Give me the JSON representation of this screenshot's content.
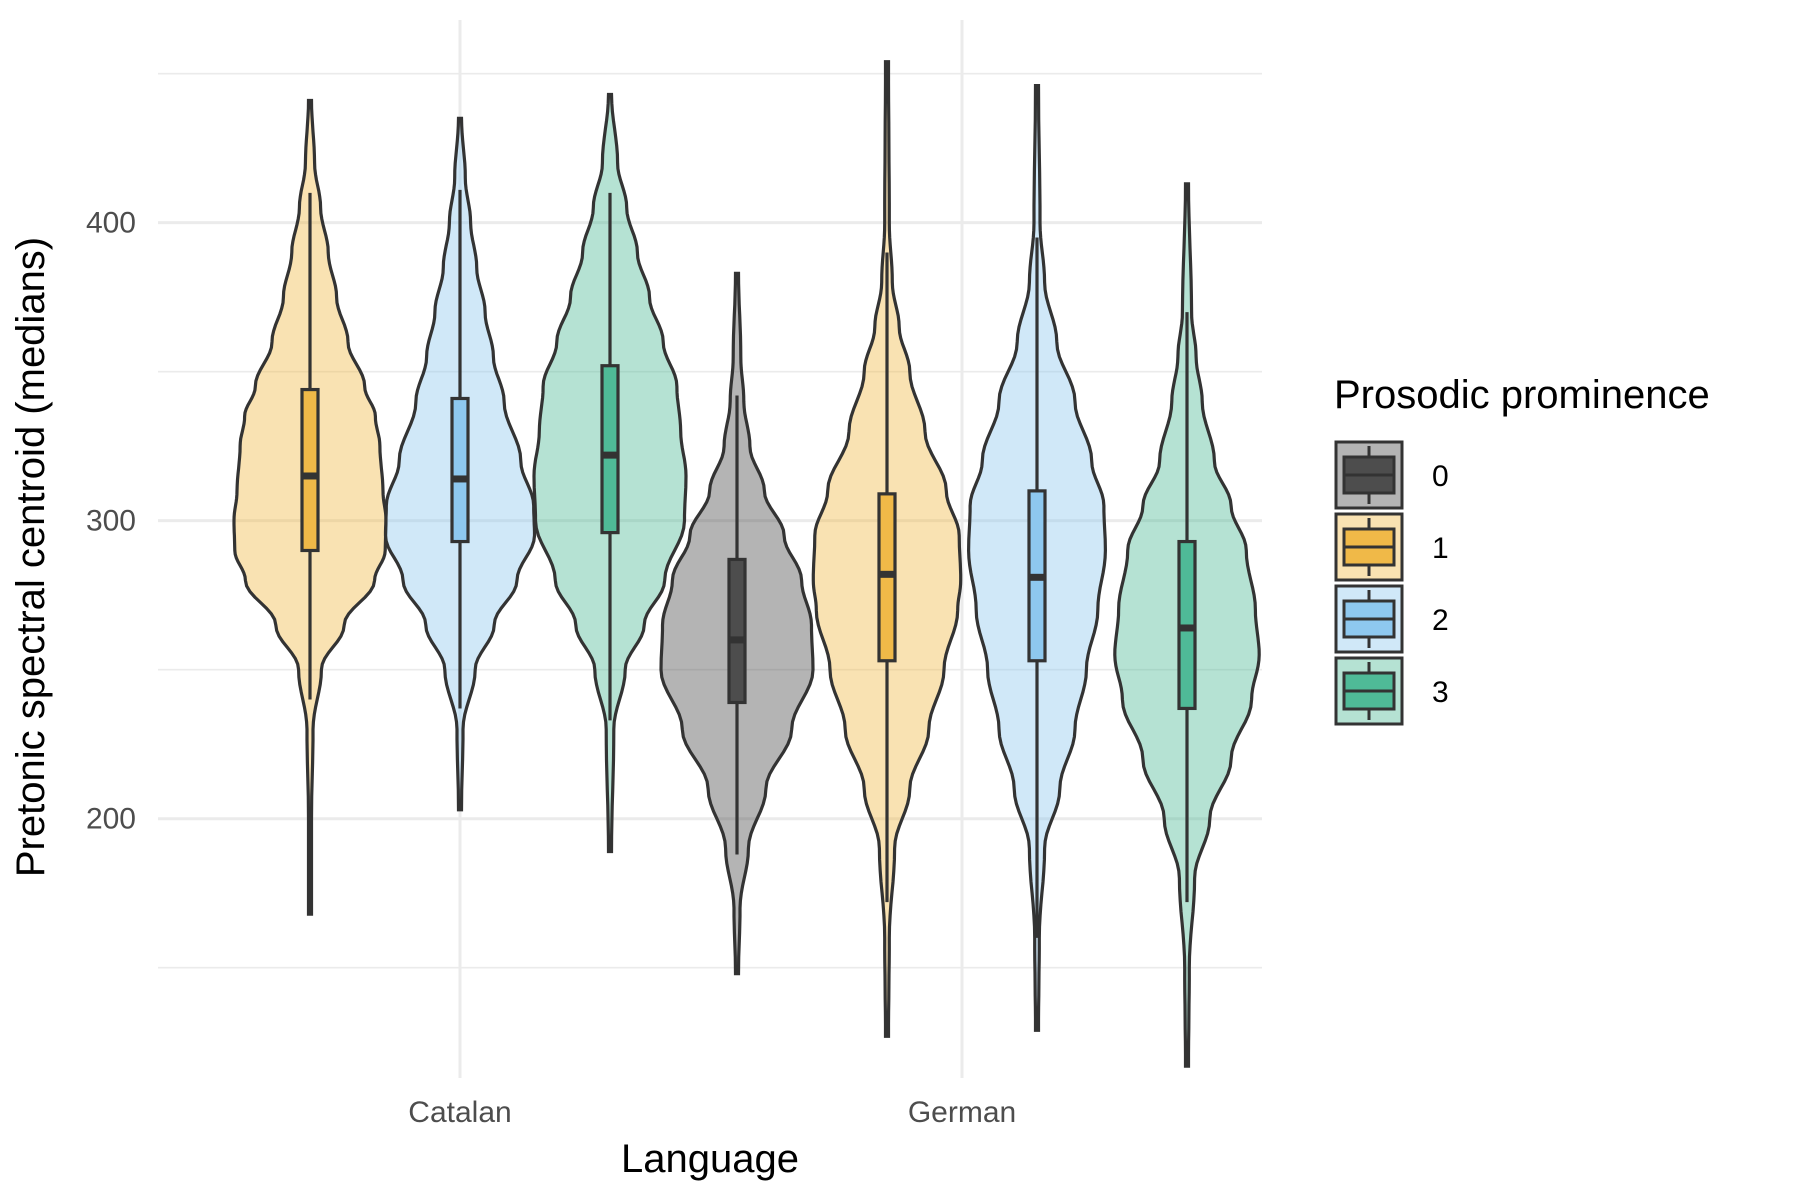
{
  "chart_data": {
    "type": "violin",
    "xlabel": "Language",
    "ylabel": "Pretonic spectral centroid (medians)",
    "categories": [
      "Catalan",
      "German"
    ],
    "ylim": [
      113,
      468
    ],
    "yticks": [
      200,
      300,
      400
    ],
    "grid": true,
    "legend": {
      "title": "Prosodic prominence",
      "position": "right",
      "entries": [
        {
          "label": "0",
          "color": "#4d4d4d"
        },
        {
          "label": "1",
          "color": "#f0b948"
        },
        {
          "label": "2",
          "color": "#8ec8ef"
        },
        {
          "label": "3",
          "color": "#4fba97"
        }
      ]
    },
    "series": [
      {
        "language": "Catalan",
        "prominence": "1",
        "min": 168,
        "max": 441,
        "q1": 290,
        "median": 315,
        "q3": 344,
        "whisker_low": 240,
        "whisker_high": 410,
        "profile": [
          [
            168,
            0.02
          ],
          [
            200,
            0.02
          ],
          [
            230,
            0.04
          ],
          [
            250,
            0.15
          ],
          [
            265,
            0.45
          ],
          [
            280,
            0.85
          ],
          [
            290,
            0.99
          ],
          [
            300,
            1.0
          ],
          [
            310,
            0.96
          ],
          [
            325,
            0.92
          ],
          [
            335,
            0.86
          ],
          [
            345,
            0.72
          ],
          [
            360,
            0.5
          ],
          [
            375,
            0.35
          ],
          [
            390,
            0.24
          ],
          [
            405,
            0.14
          ],
          [
            420,
            0.06
          ],
          [
            441,
            0.02
          ]
        ]
      },
      {
        "language": "Catalan",
        "prominence": "2",
        "min": 203,
        "max": 435,
        "q1": 293,
        "median": 314,
        "q3": 341,
        "whisker_low": 237,
        "whisker_high": 411,
        "profile": [
          [
            203,
            0.02
          ],
          [
            230,
            0.04
          ],
          [
            250,
            0.2
          ],
          [
            265,
            0.45
          ],
          [
            280,
            0.75
          ],
          [
            295,
            0.98
          ],
          [
            305,
            0.97
          ],
          [
            320,
            0.8
          ],
          [
            340,
            0.58
          ],
          [
            355,
            0.44
          ],
          [
            370,
            0.33
          ],
          [
            385,
            0.22
          ],
          [
            400,
            0.14
          ],
          [
            415,
            0.07
          ],
          [
            435,
            0.02
          ]
        ]
      },
      {
        "language": "Catalan",
        "prominence": "3",
        "min": 189,
        "max": 443,
        "q1": 296,
        "median": 322,
        "q3": 352,
        "whisker_low": 233,
        "whisker_high": 410,
        "profile": [
          [
            189,
            0.02
          ],
          [
            230,
            0.05
          ],
          [
            250,
            0.2
          ],
          [
            265,
            0.45
          ],
          [
            280,
            0.72
          ],
          [
            300,
            0.98
          ],
          [
            315,
            1.0
          ],
          [
            330,
            0.93
          ],
          [
            345,
            0.88
          ],
          [
            360,
            0.7
          ],
          [
            375,
            0.52
          ],
          [
            390,
            0.36
          ],
          [
            405,
            0.22
          ],
          [
            420,
            0.1
          ],
          [
            443,
            0.02
          ]
        ]
      },
      {
        "language": "German",
        "prominence": "0",
        "min": 148,
        "max": 383,
        "q1": 239,
        "median": 260,
        "q3": 287,
        "whisker_low": 188,
        "whisker_high": 342,
        "profile": [
          [
            148,
            0.02
          ],
          [
            170,
            0.04
          ],
          [
            190,
            0.15
          ],
          [
            210,
            0.38
          ],
          [
            230,
            0.72
          ],
          [
            250,
            1.0
          ],
          [
            265,
            0.98
          ],
          [
            280,
            0.85
          ],
          [
            295,
            0.62
          ],
          [
            310,
            0.36
          ],
          [
            325,
            0.17
          ],
          [
            340,
            0.09
          ],
          [
            355,
            0.05
          ],
          [
            383,
            0.02
          ]
        ]
      },
      {
        "language": "German",
        "prominence": "1",
        "min": 127,
        "max": 454,
        "q1": 253,
        "median": 282,
        "q3": 309,
        "whisker_low": 172,
        "whisker_high": 390,
        "profile": [
          [
            127,
            0.02
          ],
          [
            160,
            0.03
          ],
          [
            190,
            0.1
          ],
          [
            210,
            0.3
          ],
          [
            230,
            0.55
          ],
          [
            250,
            0.75
          ],
          [
            270,
            0.93
          ],
          [
            280,
            0.97
          ],
          [
            295,
            0.95
          ],
          [
            310,
            0.78
          ],
          [
            330,
            0.5
          ],
          [
            350,
            0.3
          ],
          [
            365,
            0.16
          ],
          [
            380,
            0.07
          ],
          [
            400,
            0.03
          ],
          [
            454,
            0.02
          ]
        ]
      },
      {
        "language": "German",
        "prominence": "2",
        "min": 129,
        "max": 446,
        "q1": 253,
        "median": 281,
        "q3": 310,
        "whisker_low": 160,
        "whisker_high": 395,
        "profile": [
          [
            129,
            0.02
          ],
          [
            160,
            0.03
          ],
          [
            190,
            0.1
          ],
          [
            210,
            0.3
          ],
          [
            230,
            0.5
          ],
          [
            250,
            0.65
          ],
          [
            270,
            0.8
          ],
          [
            290,
            0.9
          ],
          [
            305,
            0.88
          ],
          [
            320,
            0.72
          ],
          [
            340,
            0.5
          ],
          [
            360,
            0.26
          ],
          [
            380,
            0.1
          ],
          [
            400,
            0.04
          ],
          [
            446,
            0.02
          ]
        ]
      },
      {
        "language": "German",
        "prominence": "3",
        "min": 117,
        "max": 413,
        "q1": 237,
        "median": 264,
        "q3": 293,
        "whisker_low": 172,
        "whisker_high": 370,
        "profile": [
          [
            117,
            0.02
          ],
          [
            150,
            0.03
          ],
          [
            180,
            0.1
          ],
          [
            200,
            0.3
          ],
          [
            220,
            0.58
          ],
          [
            240,
            0.85
          ],
          [
            255,
            0.95
          ],
          [
            270,
            0.9
          ],
          [
            290,
            0.78
          ],
          [
            305,
            0.58
          ],
          [
            320,
            0.36
          ],
          [
            340,
            0.2
          ],
          [
            355,
            0.12
          ],
          [
            370,
            0.06
          ],
          [
            413,
            0.02
          ]
        ]
      }
    ]
  }
}
